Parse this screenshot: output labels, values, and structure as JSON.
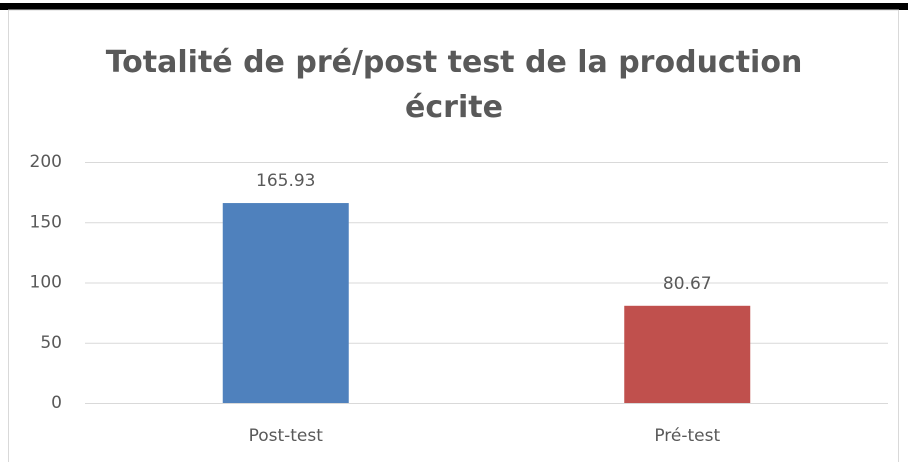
{
  "chart_data": {
    "type": "bar",
    "title": "Totalité de pré/post test de la production écrite",
    "categories": [
      "Post-test",
      "Pré-test"
    ],
    "values": [
      165.93,
      80.67
    ],
    "colors": [
      "#4f81bd",
      "#c0504d"
    ],
    "ylim": [
      0,
      200
    ],
    "yticks": [
      0,
      50,
      100,
      150,
      200
    ],
    "grid": true
  }
}
